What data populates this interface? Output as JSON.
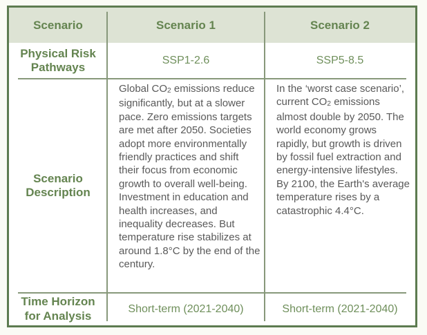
{
  "table": {
    "header": {
      "c0": "Scenario",
      "c1": "Scenario 1",
      "c2": "Scenario 2"
    },
    "rows": {
      "pathways": {
        "label": "Physical Risk Pathways",
        "s1": "SSP1-2.6",
        "s2": "SSP5-8.5"
      },
      "description": {
        "label": "Scenario Description",
        "s1": {
          "pre": "Global CO",
          "sub": "2",
          "post": " emissions reduce significantly, but at a slower pace. Zero emissions targets are met after 2050. Societies adopt more environmentally friendly practices and shift their focus from economic growth to overall well-being. Investment in education and health increases, and inequality decreases. But temperature rise stabilizes at around 1.8°C by the end of the century."
        },
        "s2": {
          "pre": "In the ‘worst case scenario’, current CO",
          "sub": "2",
          "post": " emissions almost double by 2050. The world economy grows rapidly, but growth is driven by fossil fuel extraction and energy-intensive lifestyles. By 2100, the Earth's average temperature rises by a catastrophic 4.4°C."
        }
      },
      "time_horizon": {
        "label": "Time Horizon for Analysis",
        "s1": "Short-term (2021-2040)",
        "s2": "Short-term (2021-2040)"
      }
    },
    "colors": {
      "page_bg": "#fafbf5",
      "border": "#5d7b50",
      "header_bg": "#dde3d4",
      "heading_text": "#648450",
      "value_text": "#6f8f5b",
      "body_text": "#595959",
      "grid_line": "#87987a"
    }
  }
}
